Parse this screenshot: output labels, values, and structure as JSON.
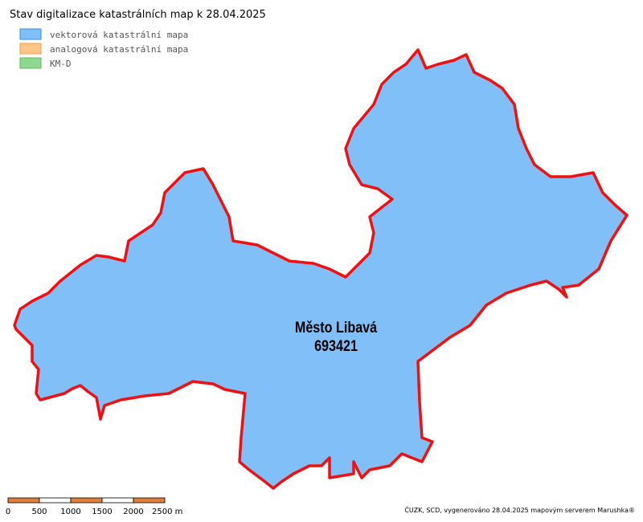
{
  "header": {
    "title": "Stav digitalizace katastrálních map k 28.04.2025"
  },
  "legend": [
    "vektorová katastrální mapa",
    "analogová katastrální mapa",
    "KM-D"
  ],
  "map": {
    "name": "Město Libavá",
    "code": "693421"
  },
  "scale": [
    "0",
    "500",
    "1000",
    "1500",
    "2000",
    "2500 m"
  ],
  "footer": {
    "credit": "ČUZK, SCD, vygenerováno 28.04.2025 mapovým serverem Marushka®"
  }
}
